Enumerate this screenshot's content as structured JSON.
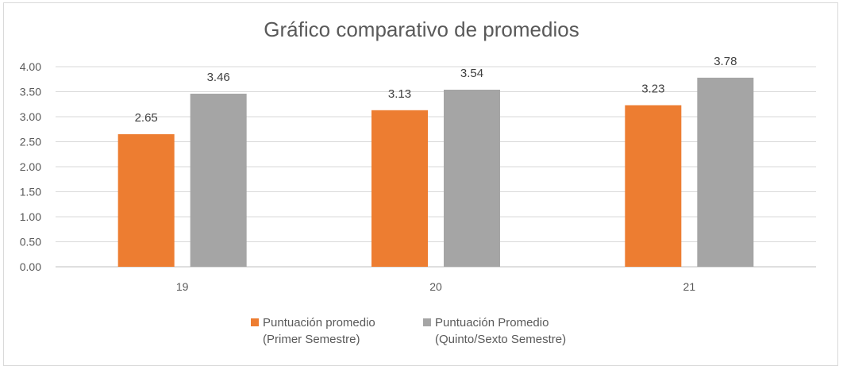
{
  "chart_data": {
    "type": "bar",
    "title": "Gráfico comparativo de promedios",
    "xlabel": "",
    "ylabel": "",
    "categories": [
      "19",
      "20",
      "21"
    ],
    "ylim": [
      0,
      4
    ],
    "yticks": [
      "0.00",
      "0.50",
      "1.00",
      "1.50",
      "2.00",
      "2.50",
      "3.00",
      "3.50",
      "4.00"
    ],
    "grid": true,
    "legend_position": "bottom",
    "series": [
      {
        "name": "Puntuación promedio\n(Primer Semestre)",
        "color": "#ed7d31",
        "values": [
          2.65,
          3.13,
          3.23
        ],
        "labels": [
          "2.65",
          "3.13",
          "3.23"
        ]
      },
      {
        "name": "Puntuación Promedio\n(Quinto/Sexto Semestre)",
        "color": "#a5a5a5",
        "values": [
          3.46,
          3.54,
          3.78
        ],
        "labels": [
          "3.46",
          "3.54",
          "3.78"
        ]
      }
    ]
  }
}
